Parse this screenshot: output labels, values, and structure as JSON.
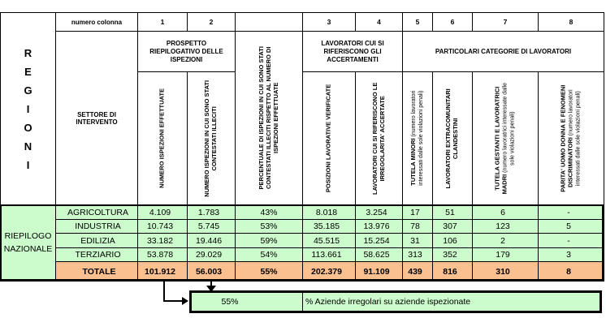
{
  "colors": {
    "green": "#CCFBCC",
    "orange": "#FAC090",
    "border": "#000000"
  },
  "header": {
    "regioni_vertical": "R\nE\nG\nI\nO\nN\nI",
    "row_label": "numero colonna",
    "sector_header": "SETTORE DI INTERVENTO",
    "column_numbers": [
      "1",
      "2",
      "",
      "3",
      "4",
      "5",
      "6",
      "7",
      "8"
    ],
    "groups": [
      "PROSPETTO RIEPILOGATIVO DELLE ISPEZIONI",
      "LAVORATORI CUI SI RIFERISCONO GLI ACCERTAMENTI",
      "PARTICOLARI CATEGORIE DI LAVORATORI"
    ],
    "columns": [
      {
        "bold": "NUMERO ISPEZIONI EFFETTUATE",
        "normal": ""
      },
      {
        "bold": "NUMERO ISPEZIONI IN CUI SONO STATI CONTESTATI ILLECITI",
        "normal": ""
      },
      {
        "bold": "PERCENTUALE DI ISPEZIONI IN CUI SONO STATI CONTESTATI ILLECITI RISPETTO AL NUMERO DI ISPEZIONI EFFETTUATE",
        "normal": ""
      },
      {
        "bold": "POSIZIONI LAVORATIVE VERIFICATE",
        "normal": ""
      },
      {
        "bold": "LAVORATORI CUI SI RIFERISCONO LE IRREGOLARITA' ACCERTATE",
        "normal": ""
      },
      {
        "bold": "TUTELA MINORI",
        "normal": " (numero lavoratori interessati dalle sole violazioni penali)"
      },
      {
        "bold": "LAVORATORI EXTRACOMUNITARI CLANDESTINI",
        "normal": ""
      },
      {
        "bold": "TUTELA GESTANTI E LAVORATRICI MADRI",
        "normal": " (numero lavoratrici interessate dalle sole violazioni penali)"
      },
      {
        "bold": "PARITA' UOMO DONNA E FENOMENI DISCRIMINATORI",
        "normal": " (numero lavoratori interessati dalle sole violazioni penali)"
      }
    ]
  },
  "body": {
    "row_group_label": "RIEPILOGO NAZIONALE",
    "rows": [
      {
        "sector": "AGRICOLTURA",
        "values": [
          "4.109",
          "1.783",
          "43%",
          "8.018",
          "3.254",
          "17",
          "51",
          "6",
          "-"
        ]
      },
      {
        "sector": "INDUSTRIA",
        "values": [
          "10.743",
          "5.745",
          "53%",
          "35.185",
          "13.976",
          "78",
          "307",
          "123",
          "5"
        ]
      },
      {
        "sector": "EDILIZIA",
        "values": [
          "33.182",
          "19.446",
          "59%",
          "45.515",
          "15.254",
          "31",
          "106",
          "2",
          "-"
        ]
      },
      {
        "sector": "TERZIARIO",
        "values": [
          "53.878",
          "29.029",
          "54%",
          "113.661",
          "58.625",
          "313",
          "352",
          "179",
          "3"
        ]
      }
    ],
    "total": {
      "sector": "TOTALE",
      "values": [
        "101.912",
        "56.003",
        "55%",
        "202.379",
        "91.109",
        "439",
        "816",
        "310",
        "8"
      ]
    }
  },
  "footer": {
    "percent": "55%",
    "label": "% Aziende irregolari su aziende ispezionate"
  },
  "chart_data": {
    "type": "table",
    "title": "Prospetto riepilogativo delle ispezioni - Riepilogo nazionale",
    "categories": [
      "AGRICOLTURA",
      "INDUSTRIA",
      "EDILIZIA",
      "TERZIARIO",
      "TOTALE"
    ],
    "series": [
      {
        "name": "NUMERO ISPEZIONI EFFETTUATE",
        "values": [
          4109,
          10743,
          33182,
          53878,
          101912
        ]
      },
      {
        "name": "NUMERO ISPEZIONI IN CUI SONO STATI CONTESTATI ILLECITI",
        "values": [
          1783,
          5745,
          19446,
          29029,
          56003
        ]
      },
      {
        "name": "PERCENTUALE DI ISPEZIONI CON ILLECITI",
        "values": [
          "43%",
          "53%",
          "59%",
          "54%",
          "55%"
        ]
      },
      {
        "name": "POSIZIONI LAVORATIVE VERIFICATE",
        "values": [
          8018,
          35185,
          45515,
          113661,
          202379
        ]
      },
      {
        "name": "LAVORATORI CUI SI RIFERISCONO LE IRREGOLARITA' ACCERTATE",
        "values": [
          3254,
          13976,
          15254,
          58625,
          91109
        ]
      },
      {
        "name": "TUTELA MINORI",
        "values": [
          17,
          78,
          31,
          313,
          439
        ]
      },
      {
        "name": "LAVORATORI EXTRACOMUNITARI CLANDESTINI",
        "values": [
          51,
          307,
          106,
          352,
          816
        ]
      },
      {
        "name": "TUTELA GESTANTI E LAVORATRICI MADRI",
        "values": [
          6,
          123,
          2,
          179,
          310
        ]
      },
      {
        "name": "PARITA' UOMO DONNA E FENOMENI DISCRIMINATORI",
        "values": [
          null,
          5,
          null,
          3,
          8
        ]
      }
    ]
  }
}
